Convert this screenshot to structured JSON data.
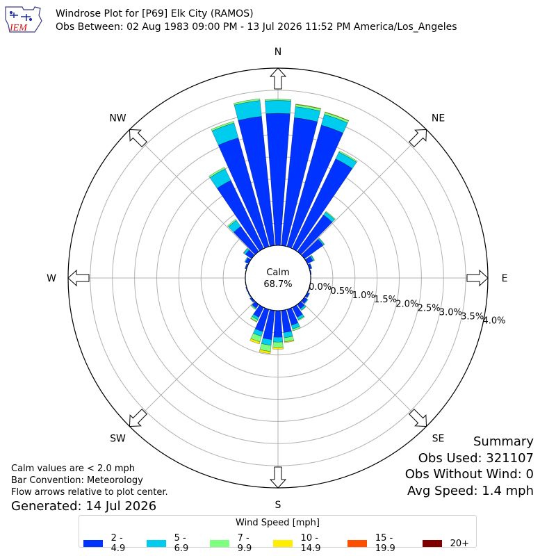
{
  "header": {
    "title": "Windrose Plot for [P69] Elk City (RAMOS)",
    "subtitle": "Obs Between: 02 Aug 1983 09:00 PM - 13 Jul 2026 11:52 PM America/Los_Angeles"
  },
  "logo": {
    "text": "IEM"
  },
  "notes": [
    "Calm values are < 2.0 mph",
    "Bar Convention: Meteorology",
    "Flow arrows relative to plot center."
  ],
  "generated": "Generated: 14 Jul 2026",
  "summary": {
    "title": "Summary",
    "obs_used": "Obs Used: 321107",
    "obs_without_wind": "Obs Without Wind: 0",
    "avg_speed": "Avg Speed: 1.4 mph"
  },
  "colors": {
    "grid": "#b0b0b0",
    "axis": "#000000"
  },
  "chart_data": {
    "type": "windrose",
    "calm_label": "Calm",
    "calm_value": "68.7%",
    "directions": [
      "N",
      "NE",
      "E",
      "SE",
      "S",
      "SW",
      "W",
      "NW"
    ],
    "radial_tick_labels": [
      "0.0%",
      "0.5%",
      "1.0%",
      "1.5%",
      "2.0%",
      "2.5%",
      "3.0%",
      "3.5%",
      "4.0%"
    ],
    "radial_ticks": [
      0,
      0.5,
      1.0,
      1.5,
      2.0,
      2.5,
      3.0,
      3.5,
      4.0
    ],
    "rmax": 4.0,
    "legend_title": "Wind Speed [mph]",
    "bins": [
      {
        "label": "2 - 4.9",
        "color": "#0033ff"
      },
      {
        "label": "5 - 6.9",
        "color": "#00ccee"
      },
      {
        "label": "7 - 9.9",
        "color": "#7fff7f"
      },
      {
        "label": "10 - 14.9",
        "color": "#ffee00"
      },
      {
        "label": "15 - 19.9",
        "color": "#ff4e00"
      },
      {
        "label": "20+",
        "color": "#800000"
      }
    ],
    "sectors": [
      {
        "dir": 0,
        "values": [
          2.98,
          0.29,
          0.03,
          0.0,
          0,
          0
        ]
      },
      {
        "dir": 10,
        "values": [
          2.9,
          0.25,
          0.05,
          0.01,
          0,
          0
        ]
      },
      {
        "dir": 20,
        "values": [
          2.85,
          0.25,
          0.05,
          0.01,
          0,
          0
        ]
      },
      {
        "dir": 30,
        "values": [
          2.25,
          0.17,
          0.03,
          0,
          0,
          0
        ]
      },
      {
        "dir": 40,
        "values": [
          1.02,
          0.08,
          0.02,
          0,
          0,
          0
        ]
      },
      {
        "dir": 50,
        "values": [
          0.52,
          0.03,
          0.01,
          0,
          0,
          0
        ]
      },
      {
        "dir": 60,
        "values": [
          0.14,
          0.03,
          0.01,
          0,
          0,
          0
        ]
      },
      {
        "dir": 70,
        "values": [
          0.05,
          0.01,
          0,
          0,
          0,
          0
        ]
      },
      {
        "dir": 80,
        "values": [
          0.02,
          0,
          0,
          0,
          0,
          0
        ]
      },
      {
        "dir": 90,
        "values": [
          0.01,
          0,
          0,
          0,
          0,
          0
        ]
      },
      {
        "dir": 100,
        "values": [
          0.01,
          0,
          0,
          0,
          0,
          0
        ]
      },
      {
        "dir": 110,
        "values": [
          0.02,
          0,
          0,
          0,
          0,
          0
        ]
      },
      {
        "dir": 120,
        "values": [
          0.05,
          0.01,
          0,
          0,
          0,
          0
        ]
      },
      {
        "dir": 130,
        "values": [
          0.08,
          0.02,
          0,
          0,
          0,
          0
        ]
      },
      {
        "dir": 140,
        "values": [
          0.12,
          0.04,
          0.01,
          0,
          0,
          0
        ]
      },
      {
        "dir": 150,
        "values": [
          0.25,
          0.06,
          0.02,
          0,
          0,
          0
        ]
      },
      {
        "dir": 160,
        "values": [
          0.37,
          0.09,
          0.04,
          0,
          0,
          0
        ]
      },
      {
        "dir": 170,
        "values": [
          0.5,
          0.12,
          0.09,
          0.02,
          0,
          0
        ]
      },
      {
        "dir": 180,
        "values": [
          0.6,
          0.11,
          0.12,
          0.04,
          0,
          0
        ]
      },
      {
        "dir": 190,
        "values": [
          0.66,
          0.13,
          0.14,
          0.05,
          0,
          0
        ]
      },
      {
        "dir": 200,
        "values": [
          0.52,
          0.11,
          0.13,
          0.05,
          0,
          0
        ]
      },
      {
        "dir": 210,
        "values": [
          0.25,
          0.06,
          0.05,
          0.01,
          0,
          0
        ]
      },
      {
        "dir": 220,
        "values": [
          0.1,
          0.02,
          0.02,
          0,
          0,
          0
        ]
      },
      {
        "dir": 230,
        "values": [
          0.04,
          0.01,
          0,
          0,
          0,
          0
        ]
      },
      {
        "dir": 240,
        "values": [
          0.02,
          0,
          0,
          0,
          0,
          0
        ]
      },
      {
        "dir": 250,
        "values": [
          0.02,
          0,
          0,
          0,
          0,
          0
        ]
      },
      {
        "dir": 260,
        "values": [
          0.01,
          0,
          0,
          0,
          0,
          0
        ]
      },
      {
        "dir": 270,
        "values": [
          0.01,
          0,
          0,
          0,
          0,
          0
        ]
      },
      {
        "dir": 280,
        "values": [
          0.01,
          0,
          0,
          0,
          0,
          0
        ]
      },
      {
        "dir": 290,
        "values": [
          0.03,
          0.01,
          0,
          0,
          0,
          0
        ]
      },
      {
        "dir": 300,
        "values": [
          0.08,
          0.02,
          0,
          0,
          0,
          0
        ]
      },
      {
        "dir": 310,
        "values": [
          0.17,
          0.05,
          0.01,
          0,
          0,
          0
        ]
      },
      {
        "dir": 320,
        "values": [
          0.7,
          0.17,
          0.03,
          0,
          0,
          0
        ]
      },
      {
        "dir": 330,
        "values": [
          1.71,
          0.29,
          0.04,
          0,
          0,
          0
        ]
      },
      {
        "dir": 340,
        "values": [
          2.55,
          0.35,
          0.04,
          0,
          0,
          0
        ]
      },
      {
        "dir": 350,
        "values": [
          2.93,
          0.36,
          0.04,
          0,
          0,
          0
        ]
      }
    ]
  }
}
